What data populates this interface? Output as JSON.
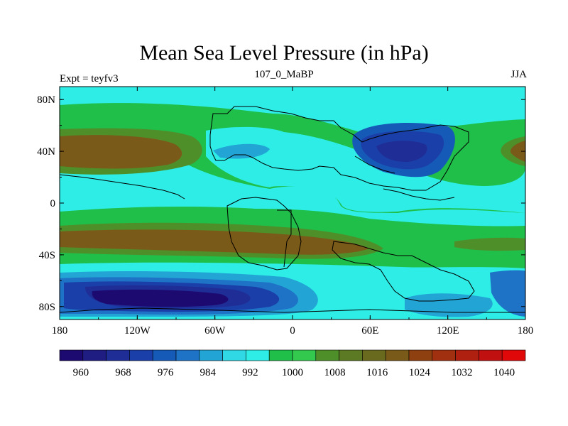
{
  "chart_data": {
    "type": "filled-contour-map",
    "title": "Mean Sea Level Pressure (in hPa)",
    "left_label": "Expt = teyfv3",
    "center_label": "107_0_MaBP",
    "right_label": "JJA",
    "x_axis": {
      "range": [
        -180,
        180
      ],
      "ticks": [
        -180,
        -120,
        -60,
        0,
        60,
        120,
        180
      ],
      "tick_labels": [
        "180",
        "120W",
        "60W",
        "0",
        "60E",
        "120E",
        "180"
      ]
    },
    "y_axis": {
      "range": [
        -90,
        90
      ],
      "ticks": [
        80,
        40,
        0,
        -40,
        -80
      ],
      "tick_labels": [
        "80N",
        "40N",
        "0",
        "40S",
        "80S"
      ]
    },
    "colorbar": {
      "colors": [
        "#1c0a70",
        "#1f1d82",
        "#1f2d96",
        "#1b3fa8",
        "#155ab6",
        "#1e73c6",
        "#22a4d4",
        "#2fd8e4",
        "#2dede6",
        "#1fbf4a",
        "#33c94f",
        "#4f8f2a",
        "#5c7a23",
        "#6a6a1f",
        "#7a5a18",
        "#8f4010",
        "#a03010",
        "#b02010",
        "#c01010",
        "#e00808"
      ],
      "label_values": [
        960,
        968,
        976,
        984,
        992,
        1000,
        1008,
        1016,
        1024,
        1032,
        1040
      ],
      "label_text": [
        "960",
        "968",
        "976",
        "984",
        "992",
        "1000",
        "1008",
        "1016",
        "1024",
        "1032",
        "1040"
      ]
    }
  }
}
